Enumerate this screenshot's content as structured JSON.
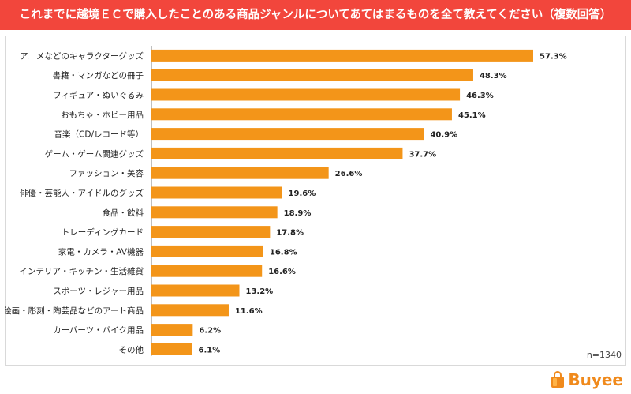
{
  "header": {
    "title": "これまでに越境ＥＣで購入したことのある商品ジャンルについてあてはまるものを全て教えてください（複数回答）"
  },
  "chart_data": {
    "type": "bar",
    "orientation": "horizontal",
    "categories": [
      "アニメなどのキャラクターグッズ",
      "書籍・マンガなどの冊子",
      "フィギュア・ぬいぐるみ",
      "おもちゃ・ホビー用品",
      "音楽（CD/レコード等）",
      "ゲーム・ゲーム関連グッズ",
      "ファッション・美容",
      "俳優・芸能人・アイドルのグッズ",
      "食品・飲料",
      "トレーディングカード",
      "家電・カメラ・AV機器",
      "インテリア・キッチン・生活雑貨",
      "スポーツ・レジャー用品",
      "絵画・彫刻・陶芸品などのアート商品",
      "カーパーツ・バイク用品",
      "その他"
    ],
    "values": [
      57.3,
      48.3,
      46.3,
      45.1,
      40.9,
      37.7,
      26.6,
      19.6,
      18.9,
      17.8,
      16.8,
      16.6,
      13.2,
      11.6,
      6.2,
      6.1
    ],
    "value_labels": [
      "57.3%",
      "48.3%",
      "46.3%",
      "45.1%",
      "40.9%",
      "37.7%",
      "26.6%",
      "19.6%",
      "18.9%",
      "17.8%",
      "16.8%",
      "16.6%",
      "13.2%",
      "11.6%",
      "6.2%",
      "6.1%"
    ],
    "xlim": [
      0,
      57.3
    ],
    "bar_color": "#f39519",
    "grid": false
  },
  "footnote": "n=1340",
  "brand": {
    "name": "Buyee",
    "color": "#f08a1c"
  }
}
